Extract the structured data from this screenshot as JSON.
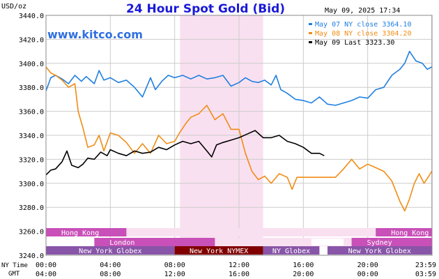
{
  "chart_data": {
    "type": "line",
    "title": "24 Hour Spot Gold (Bid)",
    "unit_label": "USD/oz",
    "timestamp": "May 09, 2025 17:34",
    "website": "www.kitco.com",
    "ylim": [
      3240,
      3440
    ],
    "y_ticks": [
      "3440.0",
      "3420.0",
      "3400.0",
      "3380.0",
      "3360.0",
      "3340.0",
      "3320.0",
      "3300.0",
      "3280.0",
      "3260.0",
      "3240.0"
    ],
    "x_label_ny": "NY Time",
    "x_label_gmt": "GMT",
    "x_ticks_ny": [
      "00:00",
      "04:00",
      "08:00",
      "12:00",
      "16:00",
      "20:00",
      "23:59"
    ],
    "x_ticks_gmt": [
      "04:00",
      "08:00",
      "12:00",
      "16:00",
      "20:00",
      "00:00",
      "03:59"
    ],
    "x_tick_hours": [
      0,
      4,
      8,
      12,
      16,
      20,
      23.983
    ],
    "shaded_hours": [
      8.33,
      13.5
    ],
    "colors": {
      "blue": "#1f7fe0",
      "orange": "#f08c14",
      "black": "#000000",
      "shade": "#f9e0f0",
      "grid": "#cccccc"
    },
    "series": [
      {
        "name": "May 07 NY close 3364.10",
        "color": "#1f7fe0",
        "x": [
          0,
          0.3,
          0.6,
          1,
          1.4,
          1.8,
          2.2,
          2.5,
          3,
          3.3,
          3.6,
          4,
          4.5,
          5,
          5.5,
          6,
          6.5,
          6.8,
          7.2,
          7.6,
          8,
          8.5,
          9,
          9.5,
          10,
          10.5,
          11,
          11.5,
          12,
          12.4,
          12.8,
          13.2,
          13.6,
          14,
          14.3,
          14.6,
          15,
          15.5,
          16,
          16.5,
          17,
          17.5,
          18,
          18.5,
          19,
          19.5,
          20,
          20.5,
          21,
          21.5,
          22,
          22.3,
          22.6,
          23,
          23.4,
          23.7,
          23.98
        ],
        "y": [
          3377,
          3388,
          3390,
          3387,
          3383,
          3390,
          3385,
          3389,
          3383,
          3394,
          3386,
          3388,
          3384,
          3386,
          3380,
          3372,
          3388,
          3378,
          3385,
          3390,
          3388,
          3390,
          3387,
          3390,
          3387,
          3388,
          3390,
          3381,
          3384,
          3388,
          3385,
          3384,
          3386,
          3382,
          3390,
          3378,
          3375,
          3370,
          3369,
          3367,
          3372,
          3366,
          3365,
          3367,
          3369,
          3372,
          3371,
          3378,
          3380,
          3390,
          3395,
          3400,
          3410,
          3402,
          3400,
          3395,
          3397
        ]
      },
      {
        "name": "May 08 NY close 3304.20",
        "color": "#f08c14",
        "x": [
          0,
          0.3,
          0.6,
          1,
          1.4,
          1.8,
          2,
          2.3,
          2.6,
          3,
          3.3,
          3.6,
          4,
          4.5,
          5,
          5.5,
          6,
          6.5,
          7,
          7.5,
          8,
          8.3,
          8.7,
          9,
          9.5,
          10,
          10.5,
          11,
          11.5,
          12,
          12.4,
          12.8,
          13.2,
          13.6,
          14,
          14.5,
          15,
          15.3,
          15.6,
          16,
          16.5,
          17,
          17.5,
          18,
          18.5,
          19,
          19.5,
          20,
          20.5,
          21,
          21.5,
          22,
          22.3,
          22.6,
          22.9,
          23.2,
          23.5,
          23.8,
          23.98
        ],
        "y": [
          3397,
          3392,
          3390,
          3386,
          3380,
          3383,
          3360,
          3346,
          3330,
          3332,
          3340,
          3327,
          3342,
          3340,
          3334,
          3325,
          3333,
          3325,
          3340,
          3333,
          3335,
          3342,
          3350,
          3355,
          3358,
          3365,
          3353,
          3358,
          3345,
          3345,
          3325,
          3310,
          3303,
          3306,
          3300,
          3308,
          3305,
          3295,
          3305,
          3305,
          3305,
          3305,
          3305,
          3305,
          3312,
          3320,
          3312,
          3316,
          3313,
          3310,
          3302,
          3285,
          3277,
          3287,
          3300,
          3308,
          3300,
          3306,
          3310
        ]
      },
      {
        "name": "May 09 Last 3323.30",
        "color": "#000000",
        "x": [
          0,
          0.3,
          0.6,
          1,
          1.3,
          1.6,
          2,
          2.3,
          2.6,
          3,
          3.4,
          3.8,
          4,
          4.5,
          5,
          5.5,
          6,
          6.5,
          7,
          7.5,
          8,
          8.5,
          9,
          9.5,
          10,
          10.3,
          10.6,
          11,
          11.5,
          12,
          12.5,
          13,
          13.5,
          14,
          14.5,
          15,
          15.5,
          16,
          16.5,
          17,
          17.3
        ],
        "y": [
          3307,
          3311,
          3312,
          3318,
          3327,
          3315,
          3313,
          3316,
          3321,
          3320,
          3326,
          3323,
          3328,
          3325,
          3323,
          3327,
          3325,
          3326,
          3330,
          3328,
          3332,
          3335,
          3333,
          3335,
          3327,
          3322,
          3332,
          3334,
          3336,
          3338,
          3341,
          3344,
          3338,
          3338,
          3340,
          3335,
          3333,
          3330,
          3325,
          3325,
          3323
        ]
      }
    ],
    "legend_position": "top-right",
    "markets": {
      "row1": [
        {
          "label": "Hong Kong",
          "start": 0,
          "end": 5,
          "color": "#c850b8"
        },
        {
          "label": "Hong Kong",
          "start": 20.5,
          "end": 23.98,
          "color": "#c850b8"
        }
      ],
      "row2": [
        {
          "label": "London",
          "start": 3,
          "end": 10.5,
          "color": "#c850b8"
        },
        {
          "label": "Sydney",
          "start": 19,
          "end": 23.98,
          "color": "#c850b8"
        }
      ],
      "row3": [
        {
          "label": "New York Globex",
          "start": 0,
          "end": 8,
          "color": "#8855a8"
        },
        {
          "label": "New York NYMEX",
          "start": 8,
          "end": 13.5,
          "color": "#800000"
        },
        {
          "label": "NY Globex",
          "start": 13.5,
          "end": 17,
          "color": "#8855a8"
        },
        {
          "label": "New York Globex",
          "start": 17.5,
          "end": 23.98,
          "color": "#8855a8"
        }
      ],
      "white_gaps": [
        {
          "row": 2,
          "start": 1,
          "end": 3
        },
        {
          "row": 2,
          "start": 16.5,
          "end": 18.5
        }
      ],
      "pink_gap_rows": [
        {
          "row": 1,
          "start": 5,
          "end": 20.5,
          "color": "#f9e0f0"
        },
        {
          "row": 2,
          "start": 10.5,
          "end": 19,
          "color": "#f9e0f0"
        }
      ]
    }
  }
}
